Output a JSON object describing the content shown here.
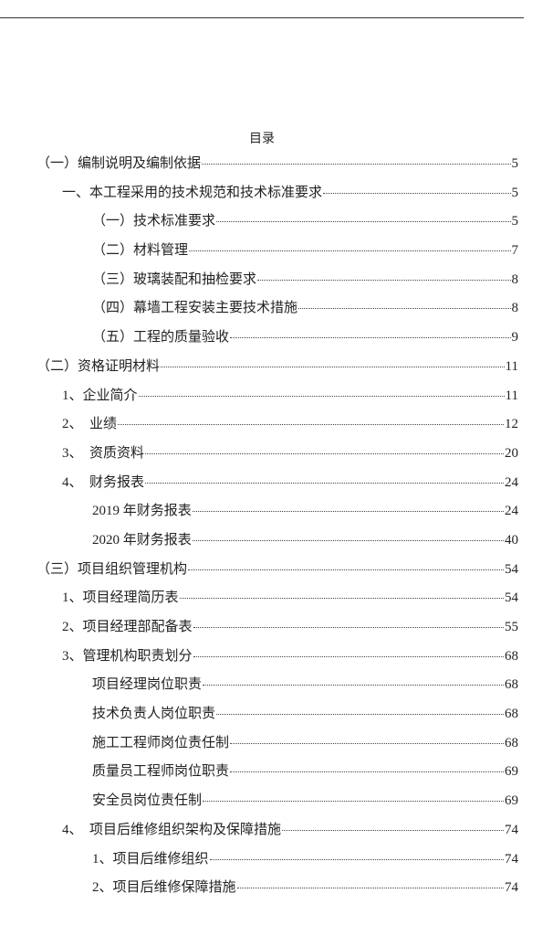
{
  "title": "目录",
  "entries": [
    {
      "level": 0,
      "label": "（一）编制说明及编制依据",
      "page": "5"
    },
    {
      "level": 1,
      "label": "一、本工程采用的技术规范和技术标准要求",
      "page": "5"
    },
    {
      "level": 2,
      "label": "（一）技术标准要求",
      "page": "5"
    },
    {
      "level": 2,
      "label": "（二）材料管理",
      "page": "7"
    },
    {
      "level": 2,
      "label": "（三）玻璃装配和抽检要求",
      "page": "8"
    },
    {
      "level": 2,
      "label": "（四）幕墙工程安装主要技术措施",
      "page": "8"
    },
    {
      "level": 2,
      "label": "（五）工程的质量验收",
      "page": "9"
    },
    {
      "level": 0,
      "label": "（二）资格证明材料",
      "page": "11"
    },
    {
      "level": 1,
      "label": "1、企业简介",
      "page": "11"
    },
    {
      "level": 1,
      "label": "2、  业绩",
      "page": "12"
    },
    {
      "level": 1,
      "label": "3、  资质资料",
      "page": "20"
    },
    {
      "level": 1,
      "label": "4、  财务报表",
      "page": "24"
    },
    {
      "level": 2,
      "label": "2019 年财务报表",
      "page": "24"
    },
    {
      "level": 2,
      "label": "2020 年财务报表",
      "page": "40"
    },
    {
      "level": 0,
      "label": "（三）项目组织管理机构",
      "page": "54"
    },
    {
      "level": 1,
      "label": "1、项目经理简历表",
      "page": "54"
    },
    {
      "level": 1,
      "label": "2、项目经理部配备表",
      "page": "55"
    },
    {
      "level": 1,
      "label": "3、管理机构职责划分",
      "page": "68"
    },
    {
      "level": 2,
      "label": "项目经理岗位职责",
      "page": "68"
    },
    {
      "level": 2,
      "label": "技术负责人岗位职责",
      "page": "68"
    },
    {
      "level": 2,
      "label": "施工工程师岗位责任制",
      "page": "68"
    },
    {
      "level": 2,
      "label": "质量员工程师岗位职责",
      "page": "69"
    },
    {
      "level": 2,
      "label": "安全员岗位责任制",
      "page": "69"
    },
    {
      "level": 1,
      "label": "4、  项目后维修组织架构及保障措施",
      "page": "74"
    },
    {
      "level": 2,
      "label": "1、项目后维修组织",
      "page": "74"
    },
    {
      "level": 2,
      "label": "2、项目后维修保障措施",
      "page": "74"
    }
  ]
}
